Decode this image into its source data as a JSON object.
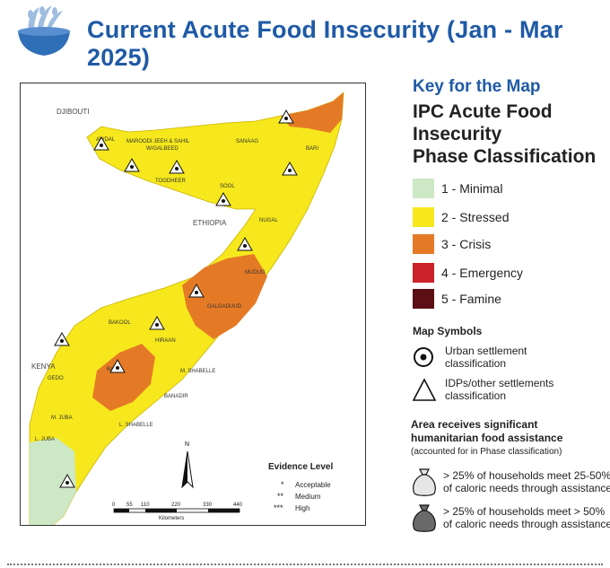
{
  "header": {
    "title": "Current Acute Food Insecurity (Jan - Mar 2025)",
    "logo_icon": "wheat-bowl-icon"
  },
  "key": {
    "heading": "Key for the Map",
    "title_lines": [
      "IPC Acute Food",
      "Insecurity",
      "Phase Classification"
    ],
    "phases": [
      {
        "label": "1 - Minimal",
        "color": "#cde8c5"
      },
      {
        "label": "2 - Stressed",
        "color": "#f6e81c"
      },
      {
        "label": "3 - Crisis",
        "color": "#e57a26"
      },
      {
        "label": "4 - Emergency",
        "color": "#cc2229"
      },
      {
        "label": "5 - Famine",
        "color": "#5b0f14"
      }
    ],
    "symbols_title": "Map Symbols",
    "symbols": [
      {
        "label": "Urban settlement classification",
        "icon": "urban-settlement-icon"
      },
      {
        "label": "IDPs/other settlements classification",
        "icon": "idp-settlement-icon"
      }
    ],
    "assistance": {
      "title": "Area receives significant humanitarian food assistance",
      "note": "(accounted for in Phase classification)",
      "items": [
        {
          "label": "> 25% of households meet 25-50% of caloric needs through assistance",
          "icon": "light-bag-icon"
        },
        {
          "label": "> 25% of households meet > 50% of caloric needs through assistance",
          "icon": "dark-bag-icon"
        }
      ]
    }
  },
  "map": {
    "country_labels": [
      "DJIBOUTI",
      "ETHIOPIA",
      "KENYA"
    ],
    "region_labels": [
      "AWDAL",
      "MAROODI JEEH & SAHIL",
      "W/GALBEED",
      "SANAAG",
      "BARI",
      "TOGDHEER",
      "SOOL",
      "NUGAL",
      "MUDUG",
      "GALGADUUD",
      "BAKOOL",
      "HIRAAN",
      "GEDO",
      "M. SHABELLE",
      "BANADIR",
      "L. SHABELLE",
      "M. JUBA",
      "L. JUBA",
      "BAY"
    ],
    "north_arrow": "N",
    "scale_ticks": [
      "0",
      "55",
      "110",
      "220",
      "330",
      "440"
    ],
    "scale_unit": "Kilometers",
    "evidence": {
      "title": "Evidence Level",
      "items": [
        {
          "symbol": "*",
          "label": "Acceptable"
        },
        {
          "symbol": "**",
          "label": "Medium"
        },
        {
          "symbol": "***",
          "label": "High"
        }
      ]
    }
  }
}
